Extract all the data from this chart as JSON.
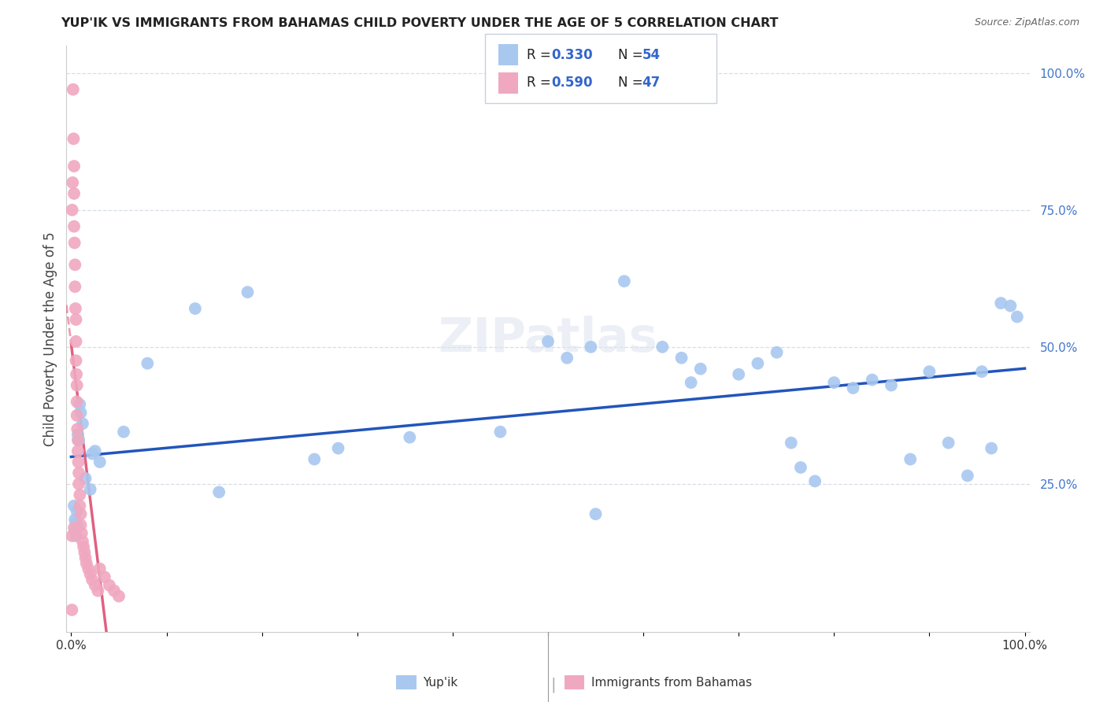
{
  "title": "YUP'IK VS IMMIGRANTS FROM BAHAMAS CHILD POVERTY UNDER THE AGE OF 5 CORRELATION CHART",
  "source": "Source: ZipAtlas.com",
  "ylabel": "Child Poverty Under the Age of 5",
  "R_blue": 0.33,
  "N_blue": 54,
  "R_pink": 0.59,
  "N_pink": 47,
  "blue_color": "#a8c8f0",
  "pink_color": "#f0a8c0",
  "trend_blue": "#2255bb",
  "trend_pink": "#e06080",
  "watermark": "ZIPatlas",
  "yupik_x": [
    0.003,
    0.004,
    0.004,
    0.005,
    0.005,
    0.006,
    0.006,
    0.007,
    0.008,
    0.009,
    0.01,
    0.012,
    0.015,
    0.02,
    0.025,
    0.03,
    0.08,
    0.13,
    0.185,
    0.28,
    0.5,
    0.52,
    0.545,
    0.58,
    0.62,
    0.64,
    0.66,
    0.7,
    0.72,
    0.74,
    0.755,
    0.765,
    0.78,
    0.8,
    0.82,
    0.84,
    0.86,
    0.88,
    0.9,
    0.92,
    0.94,
    0.955,
    0.965,
    0.975,
    0.985,
    0.992,
    0.65,
    0.55,
    0.45,
    0.355,
    0.255,
    0.155,
    0.055,
    0.022
  ],
  "yupik_y": [
    0.21,
    0.185,
    0.165,
    0.18,
    0.155,
    0.175,
    0.2,
    0.34,
    0.33,
    0.395,
    0.38,
    0.36,
    0.26,
    0.24,
    0.31,
    0.29,
    0.47,
    0.57,
    0.6,
    0.315,
    0.51,
    0.48,
    0.5,
    0.62,
    0.5,
    0.48,
    0.46,
    0.45,
    0.47,
    0.49,
    0.325,
    0.28,
    0.255,
    0.435,
    0.425,
    0.44,
    0.43,
    0.295,
    0.455,
    0.325,
    0.265,
    0.455,
    0.315,
    0.58,
    0.575,
    0.555,
    0.435,
    0.195,
    0.345,
    0.335,
    0.295,
    0.235,
    0.345,
    0.305
  ],
  "bahamas_x": [
    0.0008,
    0.001,
    0.0015,
    0.002,
    0.0025,
    0.003,
    0.003,
    0.003,
    0.0035,
    0.004,
    0.004,
    0.0045,
    0.005,
    0.005,
    0.005,
    0.0055,
    0.006,
    0.006,
    0.006,
    0.0065,
    0.007,
    0.007,
    0.0075,
    0.008,
    0.008,
    0.009,
    0.009,
    0.01,
    0.01,
    0.011,
    0.012,
    0.013,
    0.014,
    0.015,
    0.016,
    0.018,
    0.02,
    0.022,
    0.025,
    0.028,
    0.03,
    0.035,
    0.04,
    0.045,
    0.05,
    0.003,
    0.001
  ],
  "bahamas_y": [
    0.02,
    0.75,
    0.8,
    0.97,
    0.88,
    0.83,
    0.78,
    0.72,
    0.69,
    0.65,
    0.61,
    0.57,
    0.55,
    0.51,
    0.475,
    0.45,
    0.43,
    0.4,
    0.375,
    0.35,
    0.33,
    0.31,
    0.29,
    0.27,
    0.25,
    0.23,
    0.21,
    0.195,
    0.175,
    0.16,
    0.145,
    0.135,
    0.125,
    0.115,
    0.105,
    0.095,
    0.085,
    0.075,
    0.065,
    0.055,
    0.095,
    0.08,
    0.065,
    0.055,
    0.045,
    0.17,
    0.155
  ],
  "xlim": [
    0.0,
    1.0
  ],
  "ylim": [
    0.0,
    1.05
  ],
  "yticks": [
    0.25,
    0.5,
    0.75,
    1.0
  ],
  "ytick_labels": [
    "25.0%",
    "50.0%",
    "75.0%",
    "100.0%"
  ],
  "xtick_positions": [
    0.0,
    0.1,
    0.2,
    0.3,
    0.4,
    0.5,
    0.6,
    0.7,
    0.8,
    0.9,
    1.0
  ],
  "grid_color": "#d8dde8",
  "spine_color": "#cccccc"
}
